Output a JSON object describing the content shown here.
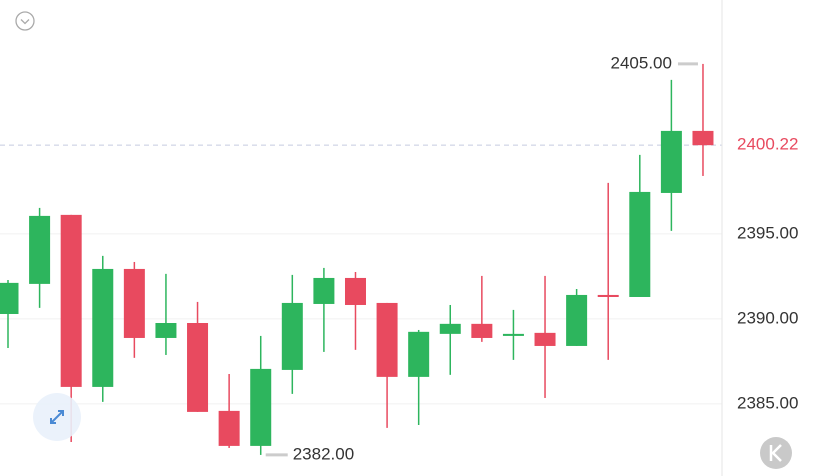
{
  "chart_data": {
    "type": "candlestick",
    "up_color": "#2db55d",
    "down_color": "#e84a5f",
    "ylim": [
      2380.76,
      2408.76
    ],
    "yticks": [
      {
        "value": 2385,
        "label": "2385.00"
      },
      {
        "value": 2390,
        "label": "2390.00"
      },
      {
        "value": 2395,
        "label": "2395.00"
      }
    ],
    "grid": true,
    "open": [
      2390.29,
      2392.06,
      2396.12,
      2386.0,
      2392.94,
      2388.88,
      2389.76,
      2384.59,
      2382.53,
      2387.0,
      2390.88,
      2392.41,
      2390.94,
      2386.59,
      2389.12,
      2389.71,
      2389.0,
      2389.18,
      2388.41,
      2391.41,
      2391.29,
      2397.41,
      2401.06
    ],
    "high": [
      2392.29,
      2396.53,
      2396.12,
      2393.71,
      2393.35,
      2392.65,
      2391.0,
      2386.76,
      2389.0,
      2392.59,
      2393.0,
      2392.76,
      2390.94,
      2389.35,
      2390.82,
      2392.53,
      2390.53,
      2392.53,
      2391.76,
      2398.0,
      2399.65,
      2404.06,
      2405.0
    ],
    "low": [
      2388.29,
      2390.65,
      2382.76,
      2385.12,
      2387.71,
      2387.88,
      2384.53,
      2382.41,
      2382.0,
      2385.59,
      2388.06,
      2388.18,
      2383.59,
      2383.76,
      2386.71,
      2388.65,
      2387.59,
      2385.35,
      2388.41,
      2387.59,
      2391.29,
      2395.18,
      2398.41
    ],
    "close": [
      2392.12,
      2396.06,
      2386.0,
      2392.94,
      2388.88,
      2389.76,
      2384.53,
      2382.53,
      2387.06,
      2390.94,
      2392.41,
      2390.82,
      2386.59,
      2389.24,
      2389.71,
      2388.88,
      2389.12,
      2388.41,
      2391.41,
      2391.29,
      2397.47,
      2401.06,
      2400.22
    ],
    "max_label": {
      "value": 2405.0,
      "label": "2405.00"
    },
    "min_label": {
      "value": 2382.0,
      "label": "2382.00"
    },
    "last_price": {
      "value": 2400.22,
      "label": "2400.22"
    }
  }
}
